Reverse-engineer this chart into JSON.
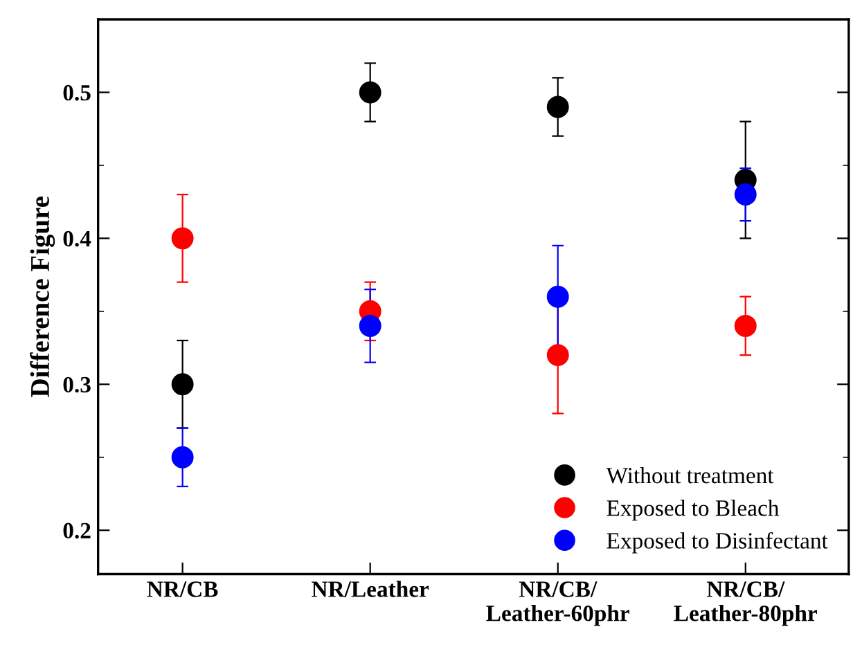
{
  "chart_data": {
    "type": "scatter",
    "ylabel": "Difference Figure",
    "categories": [
      "NR/CB",
      "NR/Leather",
      "NR/CB/\nLeather-60phr",
      "NR/CB/\nLeather-80phr"
    ],
    "series": [
      {
        "name": "Without treatment",
        "color": "#000000",
        "values": [
          0.3,
          0.5,
          0.49,
          0.44
        ],
        "errors": [
          0.03,
          0.02,
          0.02,
          0.04
        ]
      },
      {
        "name": "Exposed to Bleach",
        "color": "#ff0000",
        "values": [
          0.4,
          0.35,
          0.32,
          0.34
        ],
        "errors": [
          0.03,
          0.02,
          0.04,
          0.02
        ]
      },
      {
        "name": "Exposed to Disinfectant",
        "color": "#0000ff",
        "values": [
          0.25,
          0.34,
          0.36,
          0.43
        ],
        "errors": [
          0.02,
          0.025,
          0.035,
          0.018
        ]
      }
    ],
    "ylim": [
      0.17,
      0.55
    ],
    "yticks": [
      0.2,
      {
        "value": 0.25,
        "label": null
      },
      0.3,
      {
        "value": 0.35,
        "label": null
      },
      0.4,
      {
        "value": 0.45,
        "label": null
      },
      0.5
    ],
    "marker": "circle",
    "legend": "bottom right",
    "grid": false
  }
}
